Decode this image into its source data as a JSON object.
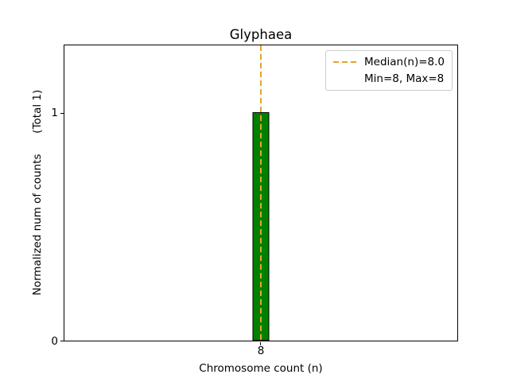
{
  "chart_data": {
    "type": "bar",
    "title": "Glyphaea",
    "xlabel": "Chromosome count (n)",
    "ylabel": "Normalized num of counts      (Total 1)",
    "categories": [
      "8"
    ],
    "values": [
      1
    ],
    "xticks": [
      "8"
    ],
    "yticks": [
      "0",
      "1"
    ],
    "ylim": [
      0,
      1.3
    ],
    "grid": false,
    "bar_color": "#008000",
    "bar_edge_color": "#000000",
    "median_line": {
      "value": 8.0,
      "color": "#e5a42b",
      "style": "dashed"
    },
    "legend": {
      "position": "upper right",
      "entries": [
        {
          "handle": "dashed-line",
          "label": "Median(n)=8.0"
        },
        {
          "handle": "none",
          "label": "Min=8, Max=8"
        }
      ]
    }
  }
}
